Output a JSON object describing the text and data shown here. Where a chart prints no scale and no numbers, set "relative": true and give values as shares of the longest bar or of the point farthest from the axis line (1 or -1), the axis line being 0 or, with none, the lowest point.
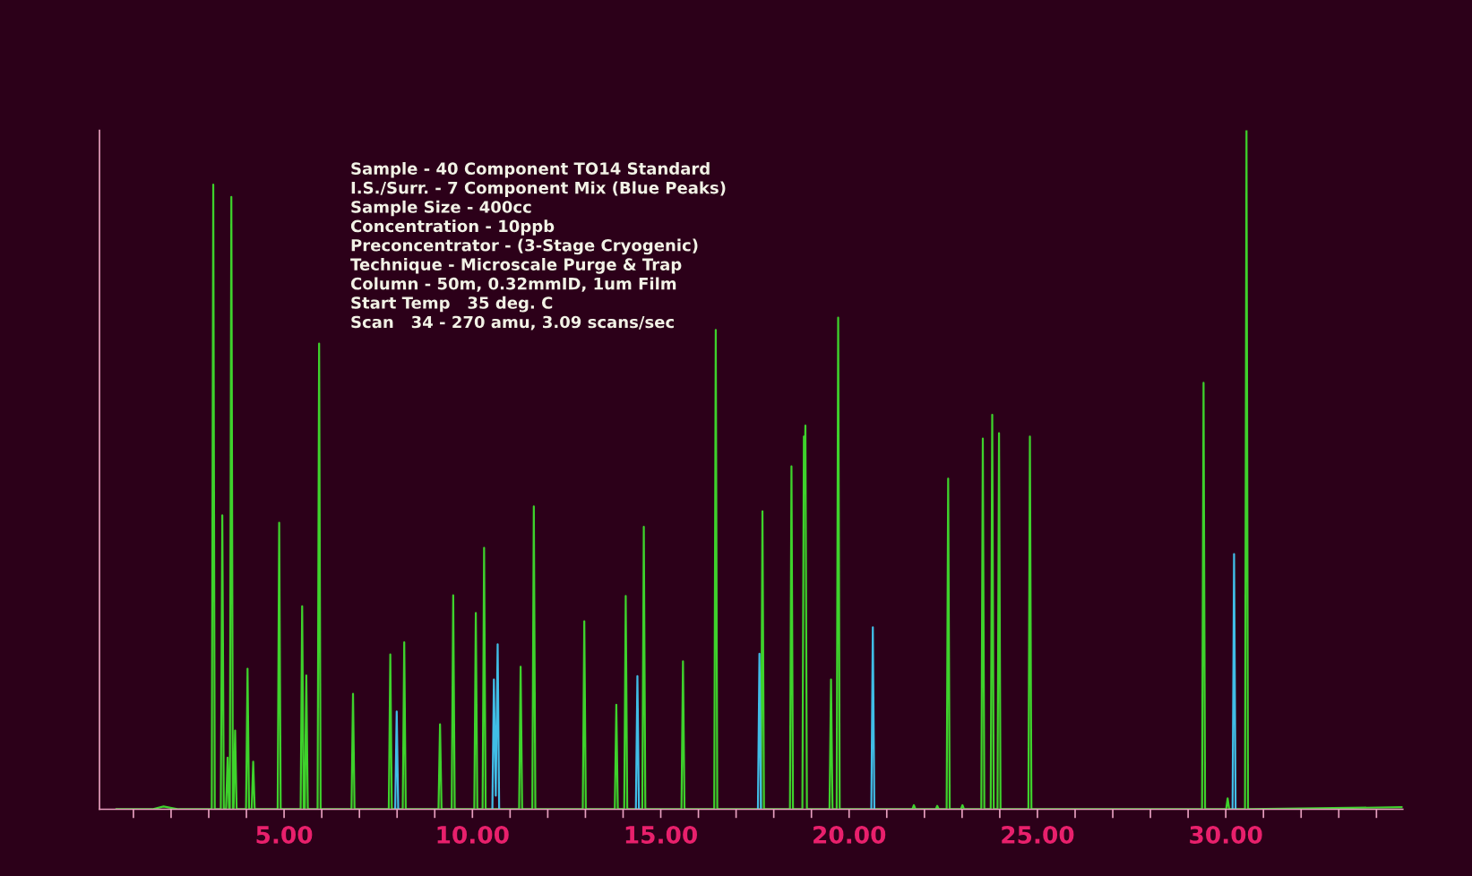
{
  "chart_data": {
    "type": "line",
    "relative": true,
    "grid": false,
    "legend": false,
    "marker": "none",
    "line_style": "solid",
    "tick_labels": "x",
    "xlim": [
      0.1,
      34.7
    ],
    "xticks": [
      {
        "value": 1,
        "label": null
      },
      {
        "value": 2,
        "label": null
      },
      {
        "value": 3,
        "label": null
      },
      {
        "value": 4,
        "label": null
      },
      {
        "value": 5,
        "label": "5.00"
      },
      {
        "value": 6,
        "label": null
      },
      {
        "value": 7,
        "label": null
      },
      {
        "value": 8,
        "label": null
      },
      {
        "value": 9,
        "label": null
      },
      {
        "value": 10,
        "label": "10.00"
      },
      {
        "value": 11,
        "label": null
      },
      {
        "value": 12,
        "label": null
      },
      {
        "value": 13,
        "label": null
      },
      {
        "value": 14,
        "label": null
      },
      {
        "value": 15,
        "label": "15.00"
      },
      {
        "value": 16,
        "label": null
      },
      {
        "value": 17,
        "label": null
      },
      {
        "value": 18,
        "label": null
      },
      {
        "value": 19,
        "label": null
      },
      {
        "value": 20,
        "label": "20.00"
      },
      {
        "value": 21,
        "label": null
      },
      {
        "value": 22,
        "label": null
      },
      {
        "value": 23,
        "label": null
      },
      {
        "value": 24,
        "label": null
      },
      {
        "value": 25,
        "label": "25.00"
      },
      {
        "value": 26,
        "label": null
      },
      {
        "value": 27,
        "label": null
      },
      {
        "value": 28,
        "label": null
      },
      {
        "value": 29,
        "label": null
      },
      {
        "value": 30,
        "label": "30.00"
      },
      {
        "value": 31,
        "label": null
      },
      {
        "value": 32,
        "label": null
      },
      {
        "value": 33,
        "label": null
      },
      {
        "value": 34,
        "label": null
      }
    ],
    "annotations": [
      "Sample - 40 Component TO14 Standard",
      "I.S./Surr. - 7 Component Mix (Blue Peaks)",
      "Sample Size - 400cc",
      "Concentration - 10ppb",
      "Preconcentrator - (3-Stage Cryogenic)",
      "Technique - Microscale Purge & Trap",
      "Column - 50m, 0.32mmID, 1um Film",
      "Start Temp   35 deg. C",
      "Scan   34 - 270 amu, 3.09 scans/sec"
    ],
    "series": [
      {
        "color": "#3ed22c",
        "x": [
          0.55,
          1.5,
          1.8,
          2.2,
          3.08,
          3.12,
          3.16,
          3.32,
          3.36,
          3.4,
          3.46,
          3.5,
          3.54,
          3.56,
          3.6,
          3.64,
          3.66,
          3.7,
          3.74,
          3.99,
          4.03,
          4.07,
          4.14,
          4.18,
          4.22,
          4.83,
          4.87,
          4.91,
          5.44,
          5.48,
          5.52,
          5.55,
          5.59,
          5.63,
          5.89,
          5.93,
          5.97,
          6.79,
          6.83,
          6.87,
          7.78,
          7.82,
          7.86,
          8.15,
          8.19,
          8.23,
          9.1,
          9.14,
          9.18,
          9.45,
          9.49,
          9.53,
          10.05,
          10.09,
          10.13,
          10.27,
          10.31,
          10.35,
          11.24,
          11.28,
          11.32,
          11.59,
          11.63,
          11.67,
          12.93,
          12.97,
          13.01,
          13.78,
          13.82,
          13.86,
          14.03,
          14.07,
          14.11,
          14.51,
          14.55,
          14.59,
          15.55,
          15.59,
          15.63,
          16.42,
          16.46,
          16.5,
          17.66,
          17.7,
          17.74,
          18.43,
          18.47,
          18.51,
          18.76,
          18.8,
          18.82,
          18.84,
          18.88,
          19.48,
          19.52,
          19.56,
          19.67,
          19.71,
          19.75,
          21.68,
          21.72,
          21.76,
          22.3,
          22.34,
          22.38,
          22.59,
          22.63,
          22.67,
          22.97,
          23.01,
          23.05,
          23.51,
          23.55,
          23.59,
          23.76,
          23.8,
          23.84,
          23.94,
          23.98,
          24.02,
          24.76,
          24.8,
          24.84,
          29.37,
          29.41,
          29.45,
          30.01,
          30.05,
          30.09,
          30.51,
          30.55,
          30.59,
          34.67
        ],
        "values": [
          0,
          0,
          0.004,
          0,
          0,
          0.92,
          0,
          0,
          0.433,
          0,
          0,
          0.076,
          0,
          0,
          0.902,
          0,
          0,
          0.116,
          0,
          0,
          0.207,
          0,
          0,
          0.07,
          0,
          0,
          0.422,
          0,
          0,
          0.299,
          0,
          0,
          0.197,
          0,
          0,
          0.686,
          0,
          0,
          0.17,
          0,
          0,
          0.228,
          0,
          0,
          0.246,
          0,
          0,
          0.125,
          0,
          0,
          0.315,
          0,
          0,
          0.289,
          0,
          0,
          0.385,
          0,
          0,
          0.21,
          0,
          0,
          0.446,
          0,
          0,
          0.277,
          0,
          0,
          0.154,
          0,
          0,
          0.314,
          0,
          0,
          0.416,
          0,
          0,
          0.218,
          0,
          0,
          0.706,
          0,
          0,
          0.439,
          0,
          0,
          0.505,
          0,
          0,
          0.549,
          0.5,
          0.565,
          0,
          0,
          0.191,
          0,
          0,
          0.724,
          0,
          0,
          0.006,
          0,
          0,
          0.005,
          0,
          0,
          0.487,
          0,
          0,
          0.006,
          0,
          0,
          0.546,
          0,
          0,
          0.581,
          0,
          0,
          0.554,
          0,
          0,
          0.549,
          0,
          0,
          0.628,
          0,
          0,
          0.016,
          0,
          0,
          1.0,
          0,
          0.003
        ]
      },
      {
        "color": "#40bde6",
        "x": [
          7.95,
          7.99,
          8.03,
          9.0,
          10.53,
          10.57,
          10.62,
          10.67,
          10.71,
          12.0,
          14.34,
          14.38,
          14.42,
          16.0,
          17.58,
          17.62,
          17.66,
          19.0,
          20.59,
          20.63,
          20.67,
          25.0,
          30.18,
          30.22,
          30.26
        ],
        "values": [
          0,
          0.144,
          0,
          null,
          0,
          0.191,
          0.02,
          0.243,
          0,
          null,
          0,
          0.196,
          0,
          null,
          0,
          0.229,
          0,
          null,
          0,
          0.268,
          0,
          null,
          0,
          0.376,
          0
        ]
      }
    ]
  }
}
